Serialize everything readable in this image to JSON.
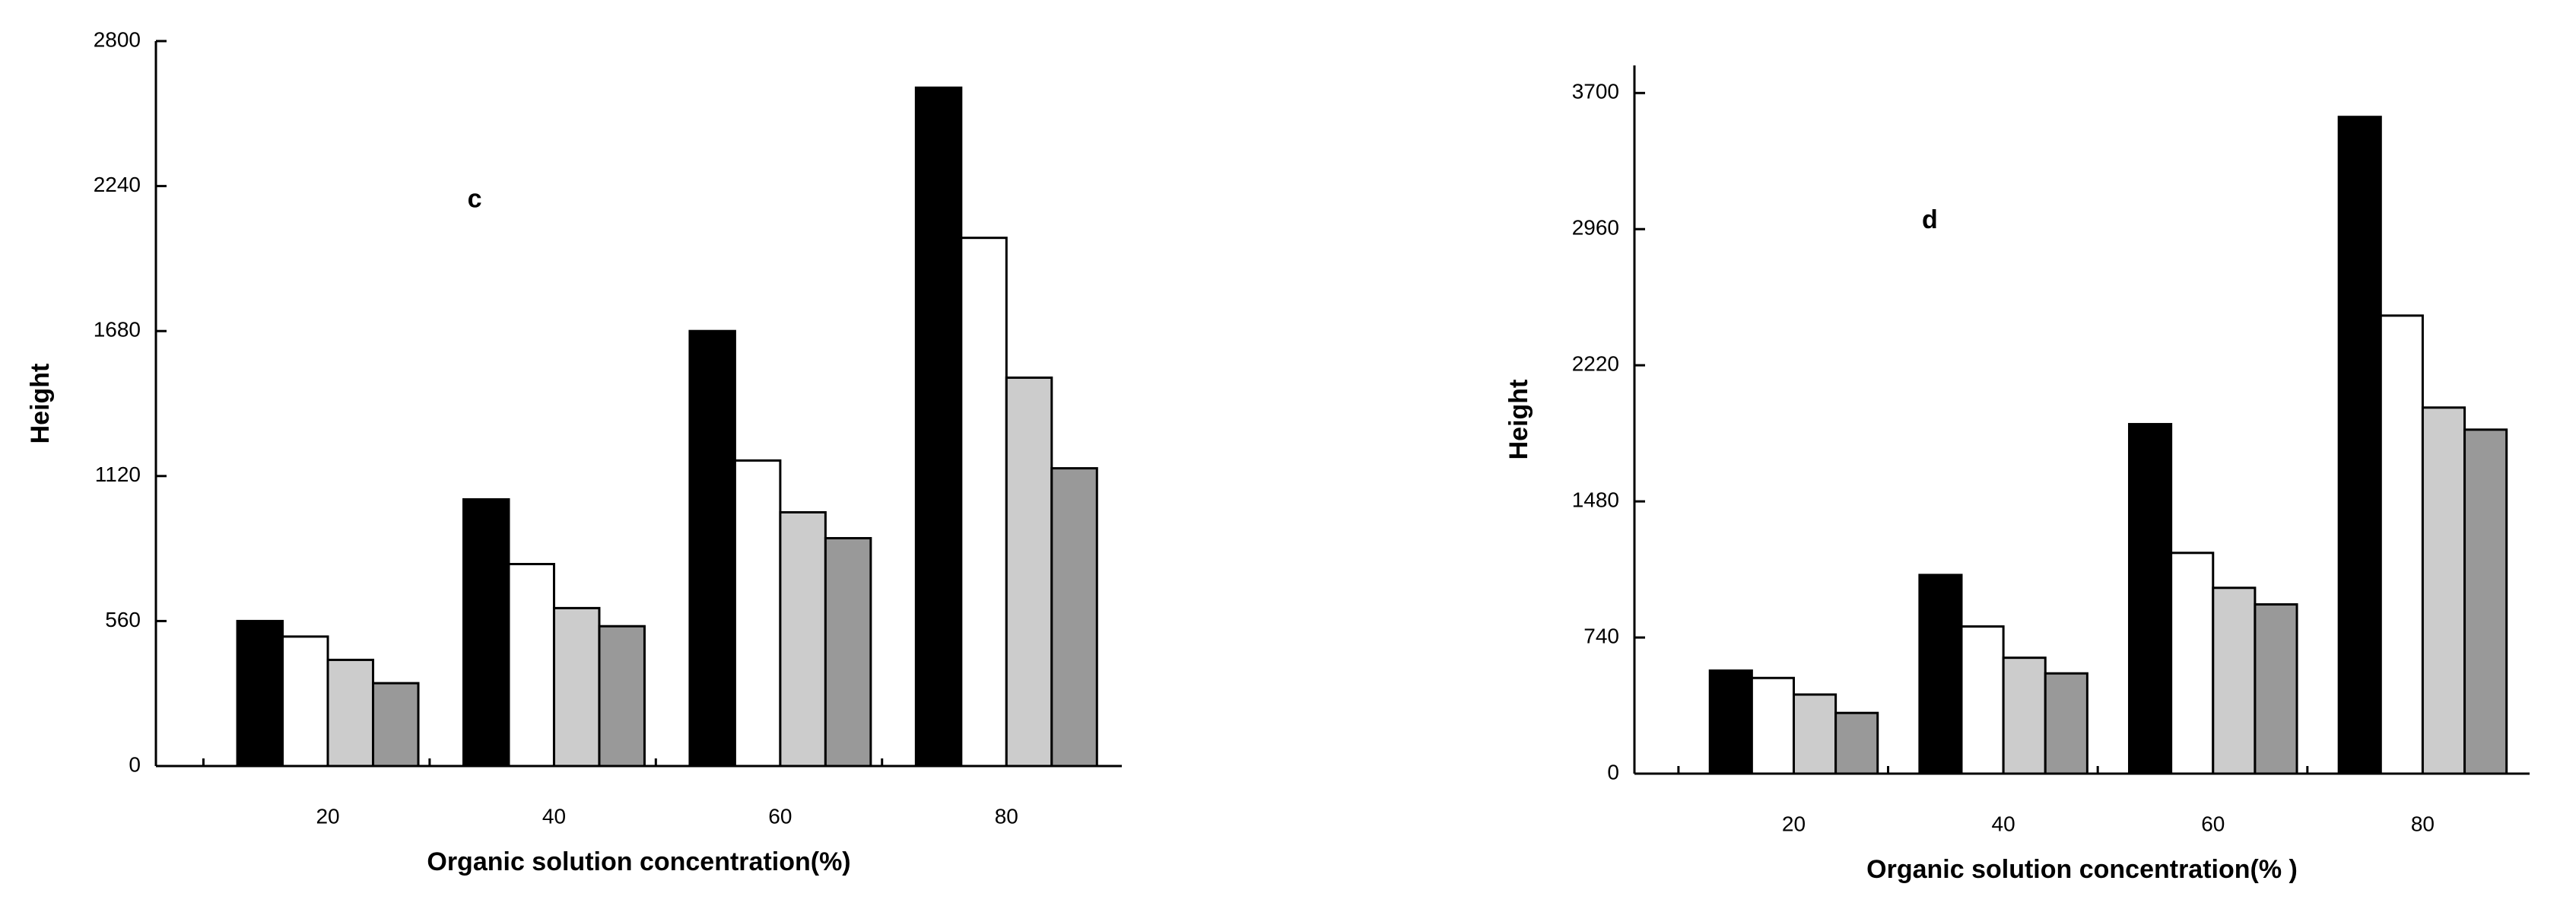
{
  "chart_data": [
    {
      "type": "bar",
      "annotation": "c",
      "ylabel": "Height",
      "xlabel": "Organic solution concentration(%)",
      "categories": [
        "20",
        "40",
        "60",
        "80"
      ],
      "series": [
        {
          "color": "#000000",
          "values": [
            560,
            1030,
            1680,
            2620
          ]
        },
        {
          "color": "#ffffff",
          "values": [
            500,
            780,
            1180,
            2040
          ]
        },
        {
          "color": "#cccccc",
          "values": [
            410,
            610,
            980,
            1500
          ]
        },
        {
          "color": "#999999",
          "values": [
            320,
            540,
            880,
            1150
          ]
        }
      ],
      "ylim": [
        0,
        2800
      ],
      "yticks": [
        0,
        560,
        1120,
        1680,
        2240,
        2800
      ]
    },
    {
      "type": "bar",
      "annotation": "d",
      "ylabel": "Height",
      "xlabel": "Organic solution concentration(% )",
      "categories": [
        "20",
        "40",
        "60",
        "80"
      ],
      "series": [
        {
          "color": "#000000",
          "values": [
            560,
            1080,
            1900,
            3570
          ]
        },
        {
          "color": "#ffffff",
          "values": [
            520,
            800,
            1200,
            2490
          ]
        },
        {
          "color": "#cccccc",
          "values": [
            430,
            630,
            1010,
            1990
          ]
        },
        {
          "color": "#999999",
          "values": [
            330,
            545,
            920,
            1870
          ]
        }
      ],
      "ylim": [
        0,
        3850
      ],
      "yticks": [
        0,
        740,
        1480,
        2220,
        2960,
        3700
      ]
    }
  ]
}
